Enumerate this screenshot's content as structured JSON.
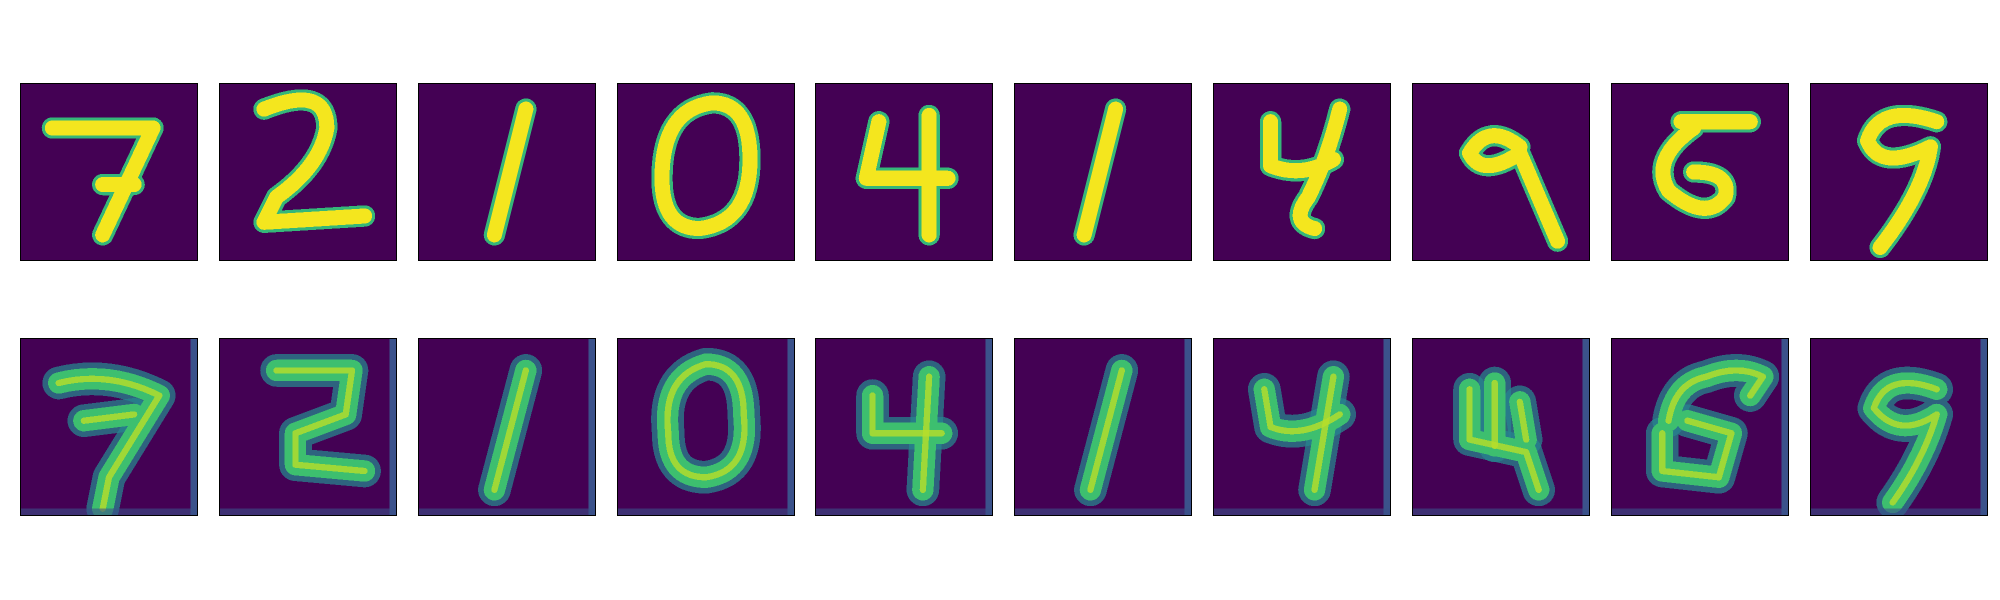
{
  "figure": {
    "rows": [
      {
        "name": "original-row",
        "kind": "original",
        "digits": [
          "7",
          "2",
          "1",
          "0",
          "4",
          "1",
          "4",
          "9",
          "5",
          "9"
        ]
      },
      {
        "name": "reconstructed-row",
        "kind": "reconstruction",
        "digits": [
          "7",
          "2",
          "1",
          "0",
          "4",
          "1",
          "4",
          "4",
          "6",
          "9"
        ]
      }
    ],
    "colors": {
      "background": "#440154",
      "original_stroke": "#f4e61e",
      "original_edge": "#35b779",
      "recon_stroke": "#3dbf6f",
      "recon_glow": "#27848e",
      "recon_core": "#b8de29",
      "recon_edge_strip": "#3b528b"
    }
  }
}
